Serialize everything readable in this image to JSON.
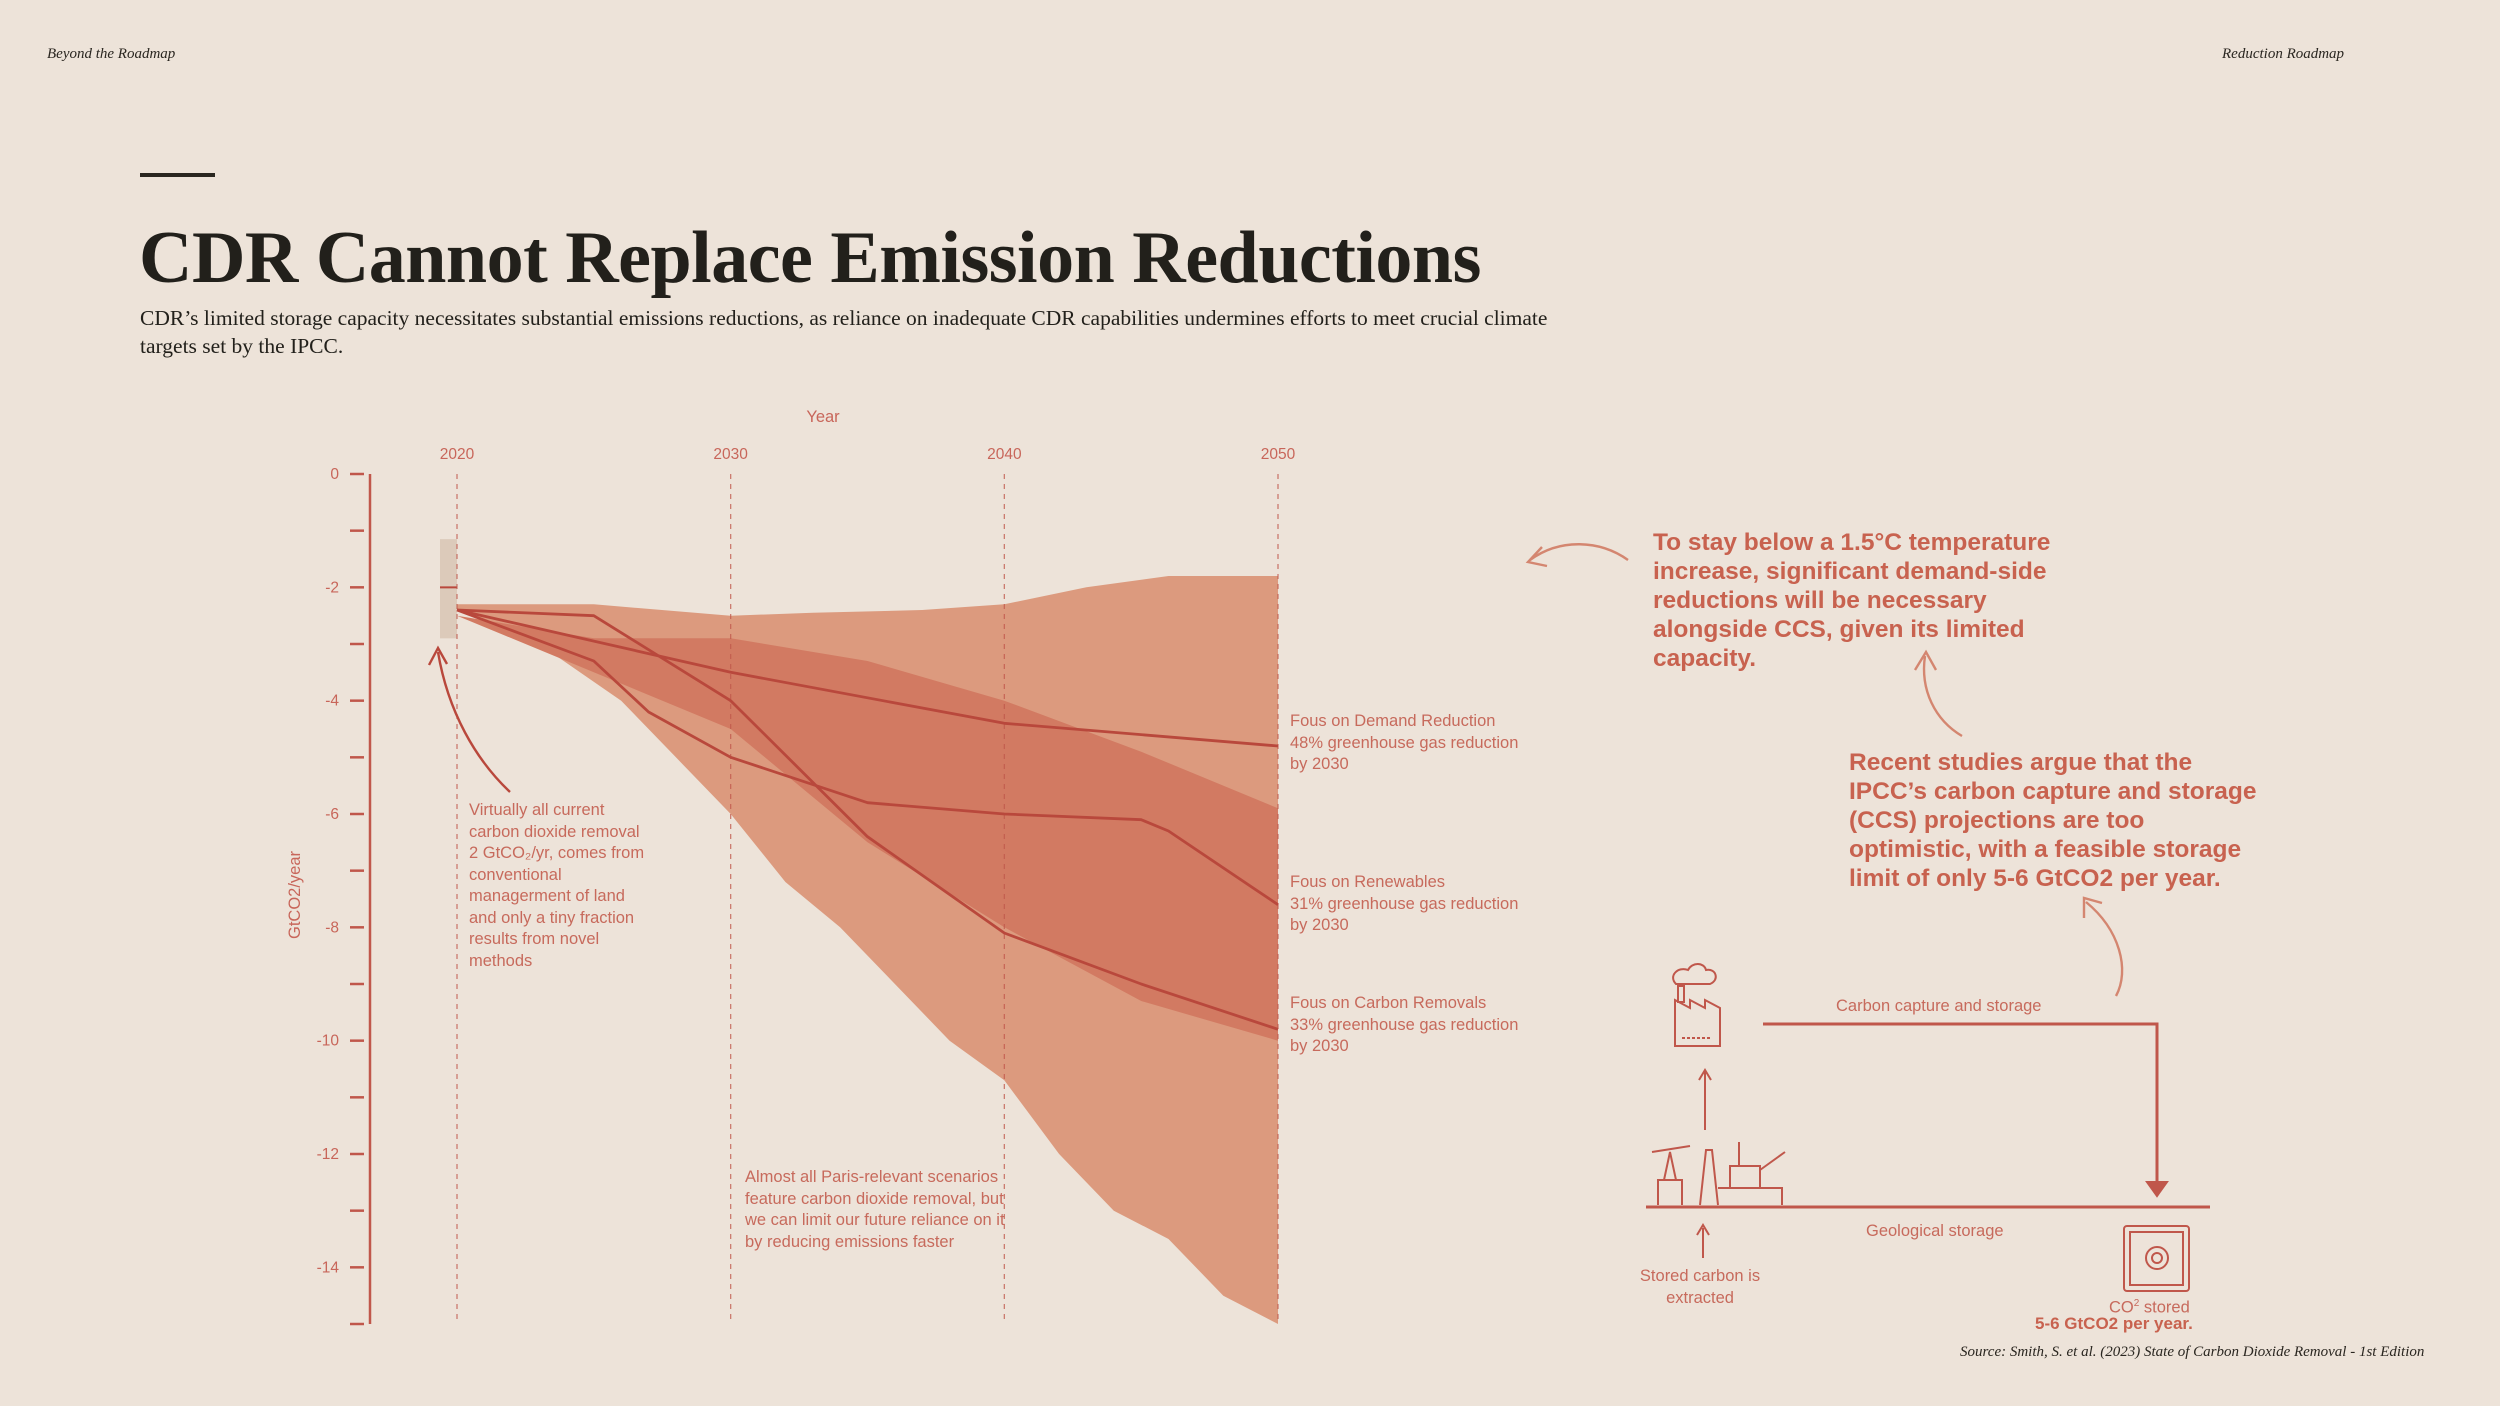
{
  "header": {
    "left": "Beyond the Roadmap",
    "right": "Reduction Roadmap"
  },
  "title": "CDR Cannot Replace Emission Reductions",
  "subtitle": "CDR’s limited storage capacity necessitates substantial emissions reductions, as reliance on inadequate CDR capabilities undermines efforts to meet crucial climate targets set by the IPCC.",
  "colors": {
    "background": "#ede3d9",
    "axis": "#c0574b",
    "band_light": "#dc9a7e",
    "band_mid": "#d27a62",
    "band_dark": "#c9614e",
    "line": "#b9483c",
    "text_accent": "#c8624f",
    "historic_box": "#d9c7b6"
  },
  "chart_data": {
    "type": "area",
    "xlabel": "Year",
    "ylabel": "GtCO2/year",
    "xticks": [
      2020,
      2030,
      2040,
      2050
    ],
    "xlim": [
      2020,
      2050
    ],
    "ylim": [
      -15,
      0
    ],
    "yticks": [
      0,
      -2,
      -4,
      -6,
      -8,
      -10,
      -12,
      -14
    ],
    "grid": "vertical dashed at x ticks",
    "historic_range": {
      "x": 2020,
      "low": -2.9,
      "high": -1.15,
      "median": -2.0
    },
    "bands": [
      {
        "name": "Full scenario range",
        "upper": [
          [
            2020,
            -2.3
          ],
          [
            2025,
            -2.3
          ],
          [
            2030,
            -2.5
          ],
          [
            2033,
            -2.45
          ],
          [
            2037,
            -2.4
          ],
          [
            2040,
            -2.3
          ],
          [
            2043,
            -2.0
          ],
          [
            2046,
            -1.8
          ],
          [
            2050,
            -1.8
          ]
        ],
        "lower": [
          [
            2020,
            -2.4
          ],
          [
            2023,
            -3.0
          ],
          [
            2026,
            -4.0
          ],
          [
            2028,
            -5.0
          ],
          [
            2030,
            -6.0
          ],
          [
            2032,
            -7.2
          ],
          [
            2034,
            -8.0
          ],
          [
            2036,
            -9.0
          ],
          [
            2038,
            -10.0
          ],
          [
            2040,
            -10.7
          ],
          [
            2042,
            -12.0
          ],
          [
            2044,
            -13.0
          ],
          [
            2046,
            -13.5
          ],
          [
            2048,
            -14.5
          ],
          [
            2050,
            -15.0
          ]
        ]
      },
      {
        "name": "Interquartile range",
        "upper": [
          [
            2020,
            -2.5
          ],
          [
            2025,
            -2.9
          ],
          [
            2030,
            -2.9
          ],
          [
            2035,
            -3.3
          ],
          [
            2040,
            -4.0
          ],
          [
            2045,
            -4.9
          ],
          [
            2050,
            -5.9
          ]
        ],
        "lower": [
          [
            2020,
            -2.5
          ],
          [
            2025,
            -3.5
          ],
          [
            2030,
            -4.5
          ],
          [
            2035,
            -6.5
          ],
          [
            2040,
            -8.0
          ],
          [
            2045,
            -9.3
          ],
          [
            2050,
            -10.0
          ]
        ]
      }
    ],
    "series": [
      {
        "name": "Fous on Demand Reduction",
        "values": [
          [
            2020,
            -2.4
          ],
          [
            2030,
            -3.5
          ],
          [
            2040,
            -4.4
          ],
          [
            2050,
            -4.8
          ]
        ]
      },
      {
        "name": "Fous on Renewables",
        "values": [
          [
            2020,
            -2.4
          ],
          [
            2025,
            -3.3
          ],
          [
            2027,
            -4.2
          ],
          [
            2030,
            -5.0
          ],
          [
            2035,
            -5.8
          ],
          [
            2040,
            -6.0
          ],
          [
            2045,
            -6.1
          ],
          [
            2046,
            -6.3
          ],
          [
            2050,
            -7.6
          ]
        ]
      },
      {
        "name": "Fous on Carbon Removals",
        "values": [
          [
            2020,
            -2.4
          ],
          [
            2025,
            -2.5
          ],
          [
            2030,
            -4.0
          ],
          [
            2035,
            -6.4
          ],
          [
            2040,
            -8.1
          ],
          [
            2045,
            -9.0
          ],
          [
            2050,
            -9.8
          ]
        ]
      }
    ],
    "series_labels": [
      {
        "name": "Fous on Demand Reduction",
        "detail": "48% greenhouse gas reduction",
        "detail2": "by 2030"
      },
      {
        "name": "Fous on Renewables",
        "detail": "31% greenhouse gas reduction",
        "detail2": "by 2030"
      },
      {
        "name": "Fous on Carbon Removals",
        "detail": "33% greenhouse gas reduction",
        "detail2": "by 2030"
      }
    ],
    "annotations": {
      "historic_note": "Virtually all current carbon dioxide removal 2 GtCO₂/yr, comes from conventional managerment of land and only a tiny fraction results from novel methods",
      "paris_note": "Almost all Paris-relevant scenarios feature carbon dioxide removal, but we can limit our future reliance on it by reducing emissions faster"
    }
  },
  "callouts": {
    "top": "To stay below a 1.5°C temperature increase, significant demand-side reductions will be necessary alongside CCS, given its limited capacity.",
    "middle": "Recent studies argue that the IPCC’s carbon capture and storage (CCS) projections are too optimistic, with a feasible storage limit of only  5-6 GtCO2 per year."
  },
  "ccs_diagram": {
    "capture_label": "Carbon capture and storage",
    "geological_label": "Geological storage",
    "extracted_label": "Stored carbon is extracted",
    "stored_label_prefix": "CO",
    "stored_label_sup": "2",
    "stored_label_suffix": " stored",
    "stored_value": "5-6 GtCO2 per year.",
    "icons": [
      "factory-icon",
      "oil-rig-icon",
      "vault-icon"
    ]
  },
  "source": "Source: Smith, S. et al. (2023) State of Carbon Dioxide Removal - 1st Edition"
}
